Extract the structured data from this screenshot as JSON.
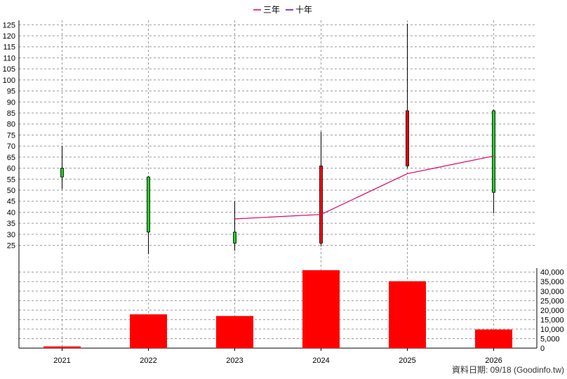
{
  "legend": [
    {
      "label": "三年",
      "color": "#e0006a"
    },
    {
      "label": "十年",
      "color": "#6600cc"
    }
  ],
  "footer": "資料日期: 09/18  (Goodinfo.tw)",
  "colors": {
    "up": "#ff0000",
    "down": "#22cc22",
    "volume": "#ff0000",
    "grid": "#9a9a9a",
    "three_year_line": "#e0006a"
  },
  "chart_data": [
    {
      "type": "candlestick",
      "x": [
        "2021",
        "2022",
        "2023",
        "2024",
        "2025",
        "2026"
      ],
      "ohlc": [
        {
          "open": 60,
          "high": 70,
          "low": 50.5,
          "close": 56
        },
        {
          "open": 56,
          "high": 56.5,
          "low": 21,
          "close": 31
        },
        {
          "open": 31,
          "high": 45,
          "low": 22.5,
          "close": 26
        },
        {
          "open": 26,
          "high": 76.5,
          "low": 24.5,
          "close": 61
        },
        {
          "open": 61,
          "high": 125.5,
          "low": 60,
          "close": 86
        },
        {
          "open": 86,
          "high": 86.5,
          "low": 39.5,
          "close": 49
        }
      ],
      "series": [
        {
          "name": "三年",
          "values": [
            null,
            null,
            37,
            39,
            57.5,
            65.5
          ]
        },
        {
          "name": "十年",
          "values": [
            null,
            null,
            null,
            null,
            null,
            null
          ]
        }
      ],
      "yticks": [
        25,
        30,
        35,
        40,
        45,
        50,
        55,
        60,
        65,
        70,
        75,
        80,
        85,
        90,
        95,
        100,
        105,
        110,
        115,
        120,
        125
      ],
      "ylim": [
        15,
        127
      ],
      "grid": true,
      "legend_position": "top-center"
    },
    {
      "type": "bar",
      "categories": [
        "2021",
        "2022",
        "2023",
        "2024",
        "2025",
        "2026"
      ],
      "values": [
        900,
        17800,
        16900,
        41000,
        35200,
        9800
      ],
      "yticks": [
        "0",
        "5,000",
        "10,000",
        "15,000",
        "20,000",
        "25,000",
        "30,000",
        "35,000",
        "40,000"
      ],
      "ylim": [
        0,
        41000
      ],
      "grid": true
    }
  ]
}
